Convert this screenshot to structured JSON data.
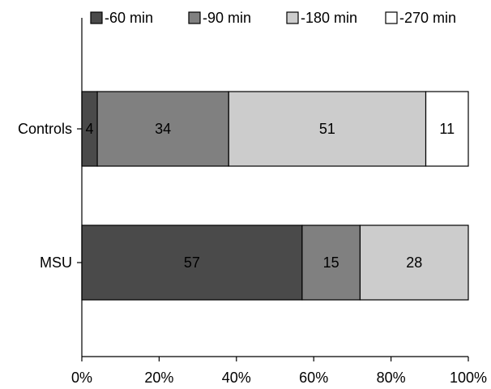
{
  "chart_data": {
    "type": "bar",
    "orientation": "horizontal",
    "stacked": true,
    "categories": [
      "Controls",
      "MSU"
    ],
    "series": [
      {
        "name": "-60 min",
        "color": "#4a4a4a",
        "values": [
          4,
          57
        ]
      },
      {
        "name": "-90 min",
        "color": "#808080",
        "values": [
          34,
          15
        ]
      },
      {
        "name": "-180 min",
        "color": "#cccccc",
        "values": [
          51,
          28
        ]
      },
      {
        "name": "-270 min",
        "color": "#ffffff",
        "values": [
          11,
          0
        ]
      }
    ],
    "xlim": [
      0,
      100
    ],
    "xticks": [
      "0%",
      "20%",
      "40%",
      "60%",
      "80%",
      "100%"
    ],
    "title": "",
    "xlabel": "",
    "ylabel": "",
    "legend_position": "top",
    "grid": false
  }
}
